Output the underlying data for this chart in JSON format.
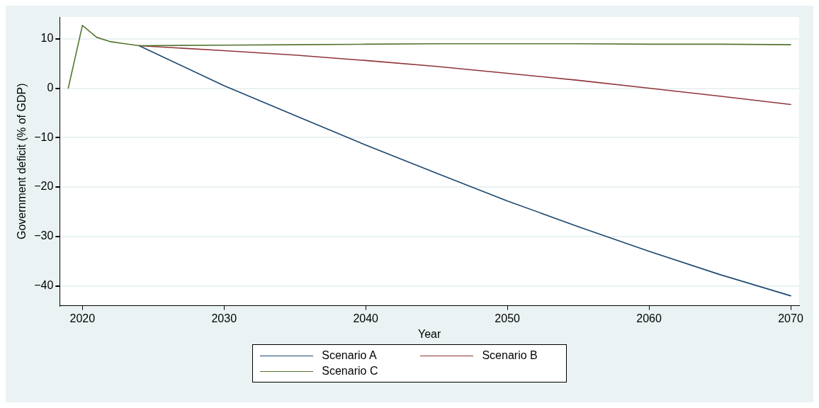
{
  "chart_data": {
    "type": "line",
    "xlabel": "Year",
    "ylabel": "Government deficit (% of GDP)",
    "x": [
      2019,
      2020,
      2021,
      2022,
      2023,
      2024,
      2030,
      2035,
      2040,
      2045,
      2050,
      2055,
      2060,
      2065,
      2070
    ],
    "series": [
      {
        "name": "Scenario A",
        "color": "#1a476f",
        "values": [
          null,
          null,
          null,
          null,
          null,
          8.6,
          0.5,
          -5.5,
          -11.5,
          -17.2,
          -22.8,
          -28,
          -33,
          -37.7,
          -42
        ]
      },
      {
        "name": "Scenario B",
        "color": "#90353b",
        "values": [
          null,
          null,
          null,
          null,
          null,
          8.6,
          7.6,
          6.7,
          5.6,
          4.4,
          3.0,
          1.6,
          0,
          -1.6,
          -3.3
        ]
      },
      {
        "name": "Scenario C",
        "color": "#55752f",
        "values": [
          0,
          12.7,
          10.3,
          9.4,
          9.0,
          8.6,
          8.7,
          8.8,
          8.9,
          9.0,
          9.0,
          9.0,
          8.9,
          8.9,
          8.8
        ]
      }
    ],
    "xlim": [
      2018.4,
      2070.6
    ],
    "xticks": [
      2020,
      2030,
      2040,
      2050,
      2060,
      2070
    ],
    "ylim": [
      -44,
      14.4
    ],
    "yticks": [
      -40,
      -30,
      -20,
      -10,
      0,
      10
    ],
    "grid": "y",
    "legend": "bottom",
    "marker": "none",
    "line_style": "solid"
  }
}
